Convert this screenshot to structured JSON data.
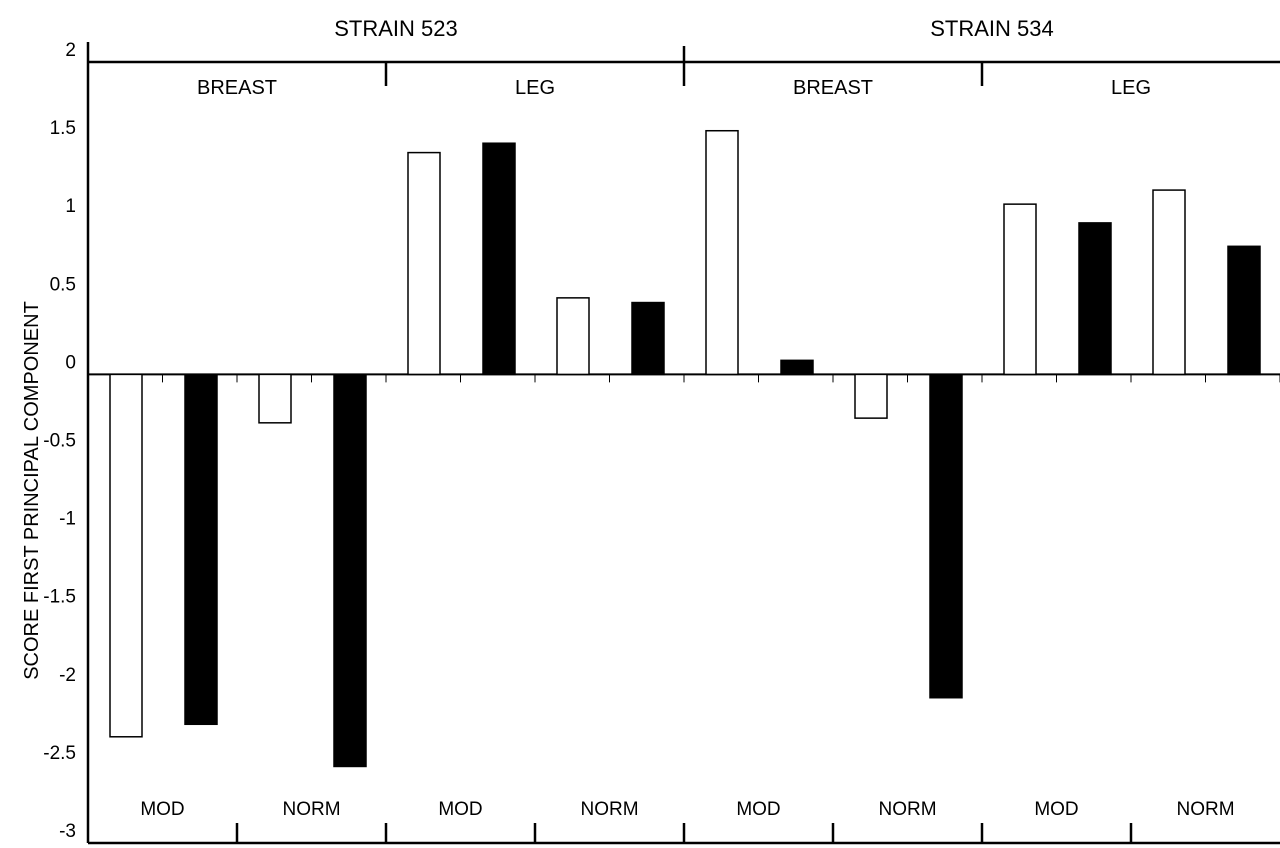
{
  "chart_data": {
    "type": "bar",
    "title": "",
    "ylabel": "SCORE FIRST PRINCIPAL COMPONENT",
    "xlabel": "",
    "ylim": [
      -3,
      2
    ],
    "y_ticks": [
      {
        "value": 2,
        "label": "2"
      },
      {
        "value": 1.5,
        "label": "1.5"
      },
      {
        "value": 1,
        "label": "1"
      },
      {
        "value": 0.5,
        "label": "0.5"
      },
      {
        "value": 0,
        "label": "0"
      },
      {
        "value": -0.5,
        "label": "-0.5"
      },
      {
        "value": -1,
        "label": "-1"
      },
      {
        "value": -1.5,
        "label": "-1.5"
      },
      {
        "value": -2,
        "label": "-2"
      },
      {
        "value": -2.5,
        "label": "-2.5"
      },
      {
        "value": -3,
        "label": "-3"
      }
    ],
    "strains": [
      "STRAIN 523",
      "STRAIN 534"
    ],
    "tissues": [
      "BREAST",
      "LEG",
      "BREAST",
      "LEG"
    ],
    "conditions": [
      "MOD",
      "NORM",
      "MOD",
      "NORM",
      "MOD",
      "NORM",
      "MOD",
      "NORM"
    ],
    "bar_colors": {
      "open": "#ffffff",
      "filled": "#000000",
      "stroke": "#000000"
    },
    "series": [
      {
        "style": "open",
        "values": [
          -2.32,
          -0.31,
          1.42,
          0.49,
          1.56,
          -0.28,
          1.09,
          1.18
        ]
      },
      {
        "style": "filled",
        "values": [
          -2.24,
          -2.51,
          1.48,
          0.46,
          0.09,
          -2.07,
          0.97,
          0.82
        ]
      }
    ]
  }
}
